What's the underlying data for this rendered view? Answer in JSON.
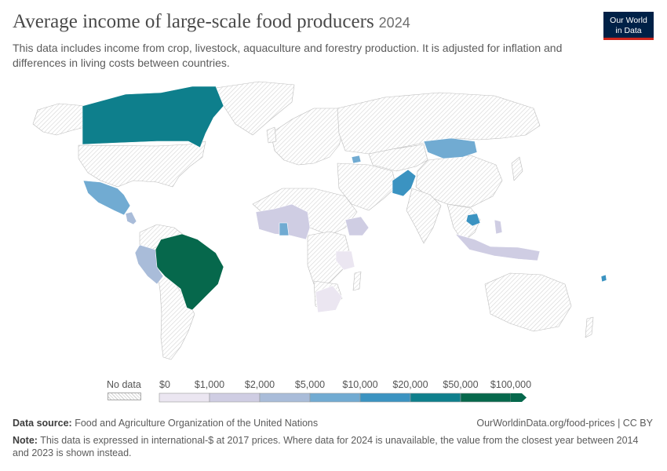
{
  "header": {
    "title": "Average income of large-scale food producers",
    "year": "2024",
    "subtitle": "This data includes income from crop, livestock, aquaculture and forestry production. It is adjusted for inflation and differences in living costs between countries."
  },
  "logo": {
    "line1": "Our World",
    "line2": "in Data"
  },
  "legend": {
    "no_data_label": "No data",
    "bins": [
      {
        "label": "$0",
        "color": "#ffffff"
      },
      {
        "label": "$1,000",
        "color": "#ebe6f1"
      },
      {
        "label": "$2,000",
        "color": "#cfcde3"
      },
      {
        "label": "$5,000",
        "color": "#a9bcd9"
      },
      {
        "label": "$10,000",
        "color": "#71abd2"
      },
      {
        "label": "$20,000",
        "color": "#3b93c1"
      },
      {
        "label": "$50,000",
        "color": "#0e7f8c"
      },
      {
        "label": "$100,000",
        "color": "#06684c"
      }
    ]
  },
  "colors": {
    "no_data_hatch": "#d4d4d4",
    "border": "#bdbdbd",
    "ocean": "#ffffff"
  },
  "map": {
    "regions": [
      {
        "name": "canada",
        "bin": 6
      },
      {
        "name": "brazil",
        "bin": 7
      },
      {
        "name": "mexico",
        "bin": 4
      },
      {
        "name": "peru",
        "bin": 3
      },
      {
        "name": "mongolia",
        "bin": 4
      },
      {
        "name": "pakistan",
        "bin": 5
      },
      {
        "name": "cambodia",
        "bin": 5
      },
      {
        "name": "west-africa",
        "bin": 2
      },
      {
        "name": "ghana",
        "bin": 4
      },
      {
        "name": "ethiopia",
        "bin": 2
      },
      {
        "name": "tanzania",
        "bin": 1
      },
      {
        "name": "south-africa",
        "bin": 1
      },
      {
        "name": "indonesia",
        "bin": 2
      },
      {
        "name": "philippines",
        "bin": 2
      },
      {
        "name": "central-america",
        "bin": 3
      },
      {
        "name": "armenia",
        "bin": 4
      },
      {
        "name": "fiji",
        "bin": 5
      }
    ]
  },
  "footer": {
    "source_label": "Data source:",
    "source_text": "Food and Agriculture Organization of the United Nations",
    "url_license": "OurWorldinData.org/food-prices | CC BY",
    "note_label": "Note:",
    "note_text": "This data is expressed in international-$ at 2017 prices. Where data for 2024 is unavailable, the value from the closest year between 2014 and 2023 is shown instead."
  }
}
